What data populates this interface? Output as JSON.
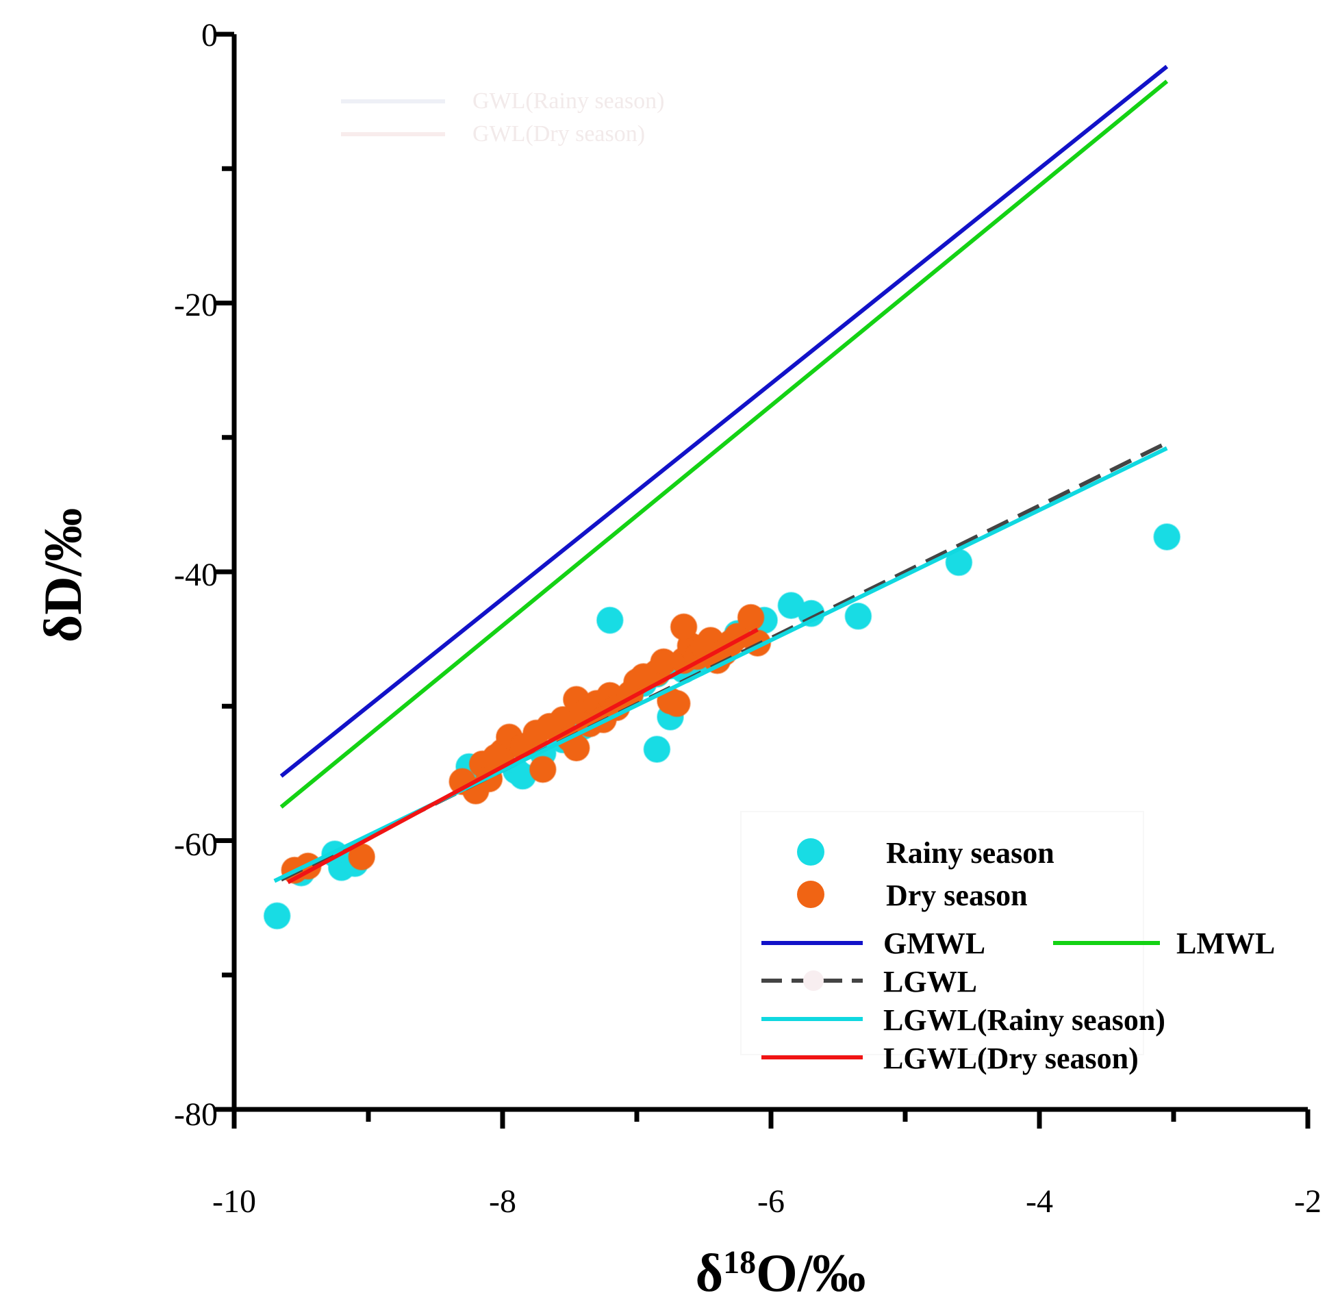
{
  "chart_data": {
    "type": "scatter",
    "title": "",
    "xlabel": "δ18O/‰",
    "xlabel_base": "δ",
    "xlabel_sup": "18",
    "xlabel_rest": "O/‰",
    "ylabel": "δD/‰",
    "xlim": [
      -10,
      -2
    ],
    "ylim": [
      -80,
      0
    ],
    "x_ticks": [
      -10,
      -8,
      -6,
      -4,
      -2
    ],
    "x_tick_labels": [
      "-10",
      "-8",
      "-6",
      "-4",
      "-2"
    ],
    "y_ticks": [
      0,
      -20,
      -40,
      -60,
      -80
    ],
    "y_tick_labels": [
      "0",
      "-20",
      "-40",
      "-60",
      "-80"
    ],
    "grid": false,
    "legend_position": "bottom-right",
    "ghost_legend": [
      "GWL(Rainy season)",
      "GWL(Dry season)"
    ],
    "scatter_series": [
      {
        "name": "Rainy season",
        "color": "#18dce4",
        "points": [
          [
            -9.68,
            -65.6
          ],
          [
            -9.5,
            -62.4
          ],
          [
            -9.25,
            -61.0
          ],
          [
            -9.2,
            -62.0
          ],
          [
            -9.1,
            -61.7
          ],
          [
            -8.25,
            -54.5
          ],
          [
            -8.2,
            -55.3
          ],
          [
            -7.9,
            -54.8
          ],
          [
            -7.85,
            -55.2
          ],
          [
            -7.7,
            -53.5
          ],
          [
            -7.55,
            -52.5
          ],
          [
            -7.4,
            -51.5
          ],
          [
            -7.2,
            -50.0
          ],
          [
            -7.05,
            -49.2
          ],
          [
            -6.95,
            -48.3
          ],
          [
            -6.85,
            -47.6
          ],
          [
            -6.75,
            -47.0
          ],
          [
            -6.65,
            -47.3
          ],
          [
            -6.55,
            -46.8
          ],
          [
            -6.4,
            -45.6
          ],
          [
            -6.25,
            -44.6
          ],
          [
            -6.05,
            -43.6
          ],
          [
            -5.85,
            -42.5
          ],
          [
            -5.7,
            -43.1
          ],
          [
            -5.35,
            -43.3
          ],
          [
            -4.6,
            -39.3
          ],
          [
            -3.05,
            -37.4
          ],
          [
            -7.2,
            -43.6
          ],
          [
            -6.85,
            -53.2
          ],
          [
            -6.75,
            -50.8
          ]
        ]
      },
      {
        "name": "Dry season",
        "color": "#f06414",
        "points": [
          [
            -9.55,
            -62.2
          ],
          [
            -9.45,
            -61.9
          ],
          [
            -9.05,
            -61.2
          ],
          [
            -8.3,
            -55.6
          ],
          [
            -8.2,
            -56.3
          ],
          [
            -8.15,
            -54.3
          ],
          [
            -8.1,
            -55.4
          ],
          [
            -8.0,
            -53.4
          ],
          [
            -7.95,
            -52.3
          ],
          [
            -7.85,
            -53.0
          ],
          [
            -7.75,
            -52.0
          ],
          [
            -7.7,
            -54.7
          ],
          [
            -7.65,
            -51.5
          ],
          [
            -7.55,
            -51.0
          ],
          [
            -7.5,
            -52.4
          ],
          [
            -7.45,
            -49.5
          ],
          [
            -7.4,
            -50.5
          ],
          [
            -7.35,
            -51.3
          ],
          [
            -7.3,
            -49.8
          ],
          [
            -7.25,
            -51.0
          ],
          [
            -7.2,
            -49.2
          ],
          [
            -7.15,
            -50.1
          ],
          [
            -7.05,
            -49.1
          ],
          [
            -7.0,
            -48.2
          ],
          [
            -6.95,
            -47.8
          ],
          [
            -6.85,
            -47.5
          ],
          [
            -6.8,
            -46.7
          ],
          [
            -6.75,
            -49.6
          ],
          [
            -6.7,
            -49.8
          ],
          [
            -6.65,
            -46.6
          ],
          [
            -6.6,
            -45.5
          ],
          [
            -6.55,
            -46.3
          ],
          [
            -6.5,
            -45.6
          ],
          [
            -6.45,
            -45.1
          ],
          [
            -6.4,
            -46.6
          ],
          [
            -6.35,
            -46.0
          ],
          [
            -6.3,
            -45.3
          ],
          [
            -6.25,
            -44.8
          ],
          [
            -6.15,
            -43.4
          ],
          [
            -6.1,
            -45.3
          ],
          [
            -6.65,
            -44.1
          ],
          [
            -7.45,
            -53.1
          ],
          [
            -8.05,
            -53.8
          ]
        ]
      }
    ],
    "line_series": [
      {
        "name": "GMWL",
        "color": "#1212c8",
        "dashed": false,
        "points": [
          [
            -9.65,
            -55.2
          ],
          [
            -3.05,
            -2.4
          ]
        ]
      },
      {
        "name": "LMWL",
        "color": "#14d214",
        "dashed": false,
        "points": [
          [
            -9.65,
            -57.5
          ],
          [
            -3.05,
            -3.5
          ]
        ]
      },
      {
        "name": "LGWL",
        "color": "#444444",
        "dashed": true,
        "points": [
          [
            -9.65,
            -62.9
          ],
          [
            -3.05,
            -30.4
          ]
        ]
      },
      {
        "name": "LGWL(Rainy season)",
        "color": "#10d8e0",
        "dashed": false,
        "points": [
          [
            -9.7,
            -63.0
          ],
          [
            -3.05,
            -30.8
          ]
        ]
      },
      {
        "name": "LGWL(Dry season)",
        "color": "#f01414",
        "dashed": false,
        "points": [
          [
            -9.6,
            -63.1
          ],
          [
            -6.1,
            -44.3
          ]
        ]
      }
    ],
    "legend": [
      {
        "label": "Rainy season",
        "kind": "marker",
        "color": "#18dce4"
      },
      {
        "label": "Dry season",
        "kind": "marker",
        "color": "#f06414"
      },
      {
        "label": "GMWL",
        "kind": "line",
        "color": "#1212c8"
      },
      {
        "label": "LMWL",
        "kind": "line",
        "color": "#14d214"
      },
      {
        "label": "LGWL",
        "kind": "dashed-line",
        "color": "#444444"
      },
      {
        "label": "LGWL(Rainy season)",
        "kind": "line",
        "color": "#10d8e0"
      },
      {
        "label": "LGWL(Dry season)",
        "kind": "line",
        "color": "#f01414"
      }
    ]
  }
}
